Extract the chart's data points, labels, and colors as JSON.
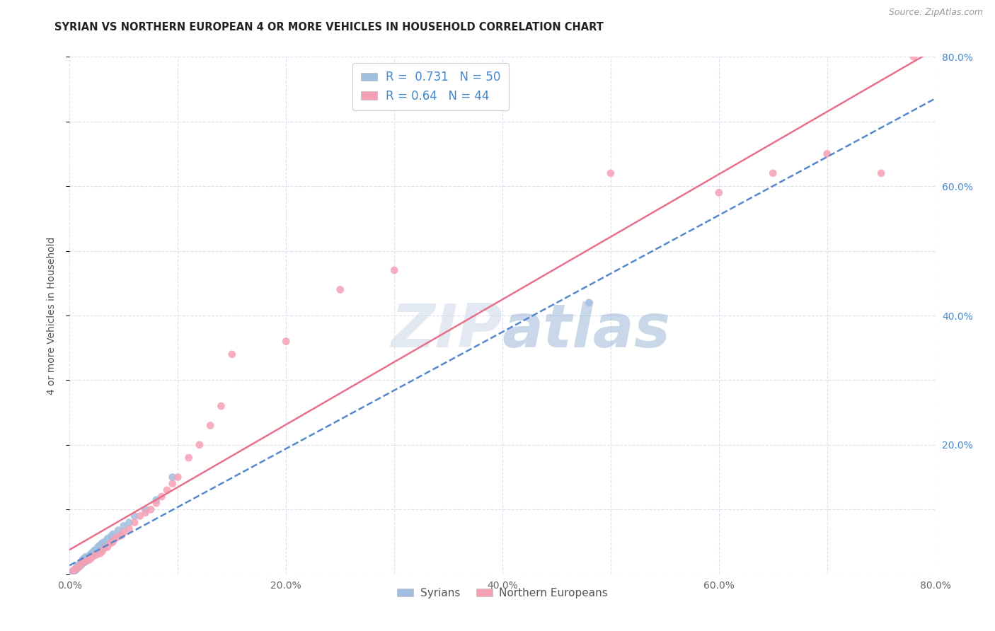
{
  "title": "SYRIAN VS NORTHERN EUROPEAN 4 OR MORE VEHICLES IN HOUSEHOLD CORRELATION CHART",
  "source": "Source: ZipAtlas.com",
  "ylabel": "4 or more Vehicles in Household",
  "xlim": [
    0.0,
    0.8
  ],
  "ylim": [
    0.0,
    0.8
  ],
  "xtick_labels": [
    "0.0%",
    "",
    "20.0%",
    "",
    "40.0%",
    "",
    "60.0%",
    "",
    "80.0%"
  ],
  "xtick_vals": [
    0.0,
    0.1,
    0.2,
    0.3,
    0.4,
    0.5,
    0.6,
    0.7,
    0.8
  ],
  "ytick_vals": [
    0.0,
    0.1,
    0.2,
    0.3,
    0.4,
    0.5,
    0.6,
    0.7,
    0.8
  ],
  "right_ytick_labels": [
    "20.0%",
    "40.0%",
    "60.0%",
    "80.0%"
  ],
  "right_ytick_vals": [
    0.2,
    0.4,
    0.6,
    0.8
  ],
  "syrians_R": 0.731,
  "syrians_N": 50,
  "northern_R": 0.64,
  "northern_N": 44,
  "syrians_dot_color": "#a0bfe0",
  "northern_dot_color": "#f5a0b5",
  "syrians_line_color": "#5588cc",
  "northern_line_color": "#e8708a",
  "background_color": "#ffffff",
  "grid_color": "#dde0ee",
  "watermark_color": "#ccd8e8",
  "legend_label_1": "Syrians",
  "legend_label_2": "Northern Europeans",
  "syrians_x": [
    0.002,
    0.003,
    0.004,
    0.005,
    0.005,
    0.006,
    0.006,
    0.007,
    0.007,
    0.008,
    0.008,
    0.009,
    0.009,
    0.01,
    0.01,
    0.01,
    0.011,
    0.011,
    0.012,
    0.012,
    0.013,
    0.013,
    0.014,
    0.014,
    0.015,
    0.015,
    0.016,
    0.017,
    0.018,
    0.019,
    0.02,
    0.021,
    0.022,
    0.023,
    0.025,
    0.026,
    0.028,
    0.03,
    0.032,
    0.035,
    0.038,
    0.04,
    0.045,
    0.05,
    0.055,
    0.06,
    0.07,
    0.08,
    0.095,
    0.48
  ],
  "syrians_y": [
    0.003,
    0.004,
    0.005,
    0.006,
    0.008,
    0.007,
    0.009,
    0.01,
    0.012,
    0.011,
    0.013,
    0.014,
    0.015,
    0.013,
    0.016,
    0.018,
    0.015,
    0.02,
    0.017,
    0.022,
    0.018,
    0.024,
    0.019,
    0.025,
    0.02,
    0.027,
    0.023,
    0.026,
    0.028,
    0.03,
    0.032,
    0.033,
    0.035,
    0.037,
    0.038,
    0.042,
    0.045,
    0.048,
    0.05,
    0.055,
    0.058,
    0.062,
    0.068,
    0.075,
    0.08,
    0.09,
    0.1,
    0.115,
    0.15,
    0.42
  ],
  "northern_x": [
    0.003,
    0.005,
    0.008,
    0.01,
    0.012,
    0.015,
    0.018,
    0.02,
    0.022,
    0.025,
    0.028,
    0.03,
    0.032,
    0.035,
    0.038,
    0.04,
    0.042,
    0.045,
    0.048,
    0.05,
    0.055,
    0.06,
    0.065,
    0.07,
    0.075,
    0.08,
    0.085,
    0.09,
    0.095,
    0.1,
    0.11,
    0.12,
    0.13,
    0.14,
    0.15,
    0.2,
    0.25,
    0.3,
    0.5,
    0.6,
    0.65,
    0.7,
    0.75,
    0.78
  ],
  "northern_y": [
    0.005,
    0.008,
    0.01,
    0.015,
    0.018,
    0.02,
    0.022,
    0.025,
    0.028,
    0.03,
    0.032,
    0.035,
    0.04,
    0.042,
    0.048,
    0.05,
    0.055,
    0.058,
    0.06,
    0.065,
    0.07,
    0.08,
    0.09,
    0.095,
    0.1,
    0.11,
    0.12,
    0.13,
    0.14,
    0.15,
    0.18,
    0.2,
    0.23,
    0.26,
    0.34,
    0.36,
    0.44,
    0.47,
    0.62,
    0.59,
    0.62,
    0.65,
    0.62,
    0.8
  ]
}
